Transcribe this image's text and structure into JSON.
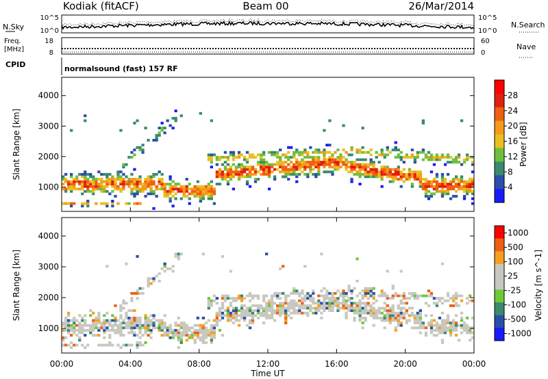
{
  "header": {
    "station": "Kodiak (fitACF)",
    "beam": "Beam 00",
    "date": "26/Mar/2014"
  },
  "noise_panel": {
    "left_label": "N.Sky",
    "right_label": "N.Search",
    "left_ticks": [
      "10^5",
      "10^0"
    ],
    "right_ticks": [
      "10^5",
      "10^0"
    ]
  },
  "freq_panel": {
    "left_label_line1": "Freq.",
    "left_label_line2": "[MHz]",
    "right_label": "Nave",
    "left_ticks": [
      "18",
      "8"
    ],
    "right_ticks": [
      "60",
      "0"
    ]
  },
  "cpid_panel": {
    "label": "CPID",
    "text": "normalsound (fast) 157 RF"
  },
  "colors": {
    "power_scale": [
      "#1a1aff",
      "#2a4fa8",
      "#3a8a6e",
      "#6fbf3f",
      "#e8c020",
      "#f59a1a",
      "#f06010",
      "#e02010",
      "#ff0000"
    ],
    "velocity_scale": [
      "#ff0000",
      "#f06010",
      "#f5a020",
      "#c8c8c0",
      "#c8c8c0",
      "#6fc83a",
      "#3a8a6e",
      "#2a4fa8",
      "#1a1aff"
    ]
  },
  "chart_data": [
    {
      "type": "heatmap",
      "name": "power",
      "ylabel": "Slant Range [km]",
      "yticks": [
        1000,
        2000,
        3000,
        4000
      ],
      "ylim": [
        200,
        4600
      ],
      "xlim": [
        0,
        24
      ],
      "colorbar_label": "Power [dB]",
      "colorbar_ticks": [
        "4",
        "8",
        "12",
        "16",
        "20",
        "24",
        "28"
      ]
    },
    {
      "type": "heatmap",
      "name": "velocity",
      "ylabel": "Slant Range [km]",
      "yticks": [
        1000,
        2000,
        3000,
        4000
      ],
      "ylim": [
        200,
        4600
      ],
      "xlim": [
        0,
        24
      ],
      "colorbar_label": "Velocity [m s^-1]",
      "colorbar_ticks": [
        "1000",
        "500",
        "100",
        "25",
        "-25",
        "-100",
        "-500",
        "-1000"
      ]
    }
  ],
  "x_axis": {
    "label": "Time UT",
    "ticks": [
      "00:00",
      "04:00",
      "08:00",
      "12:00",
      "16:00",
      "20:00",
      "00:00"
    ]
  }
}
